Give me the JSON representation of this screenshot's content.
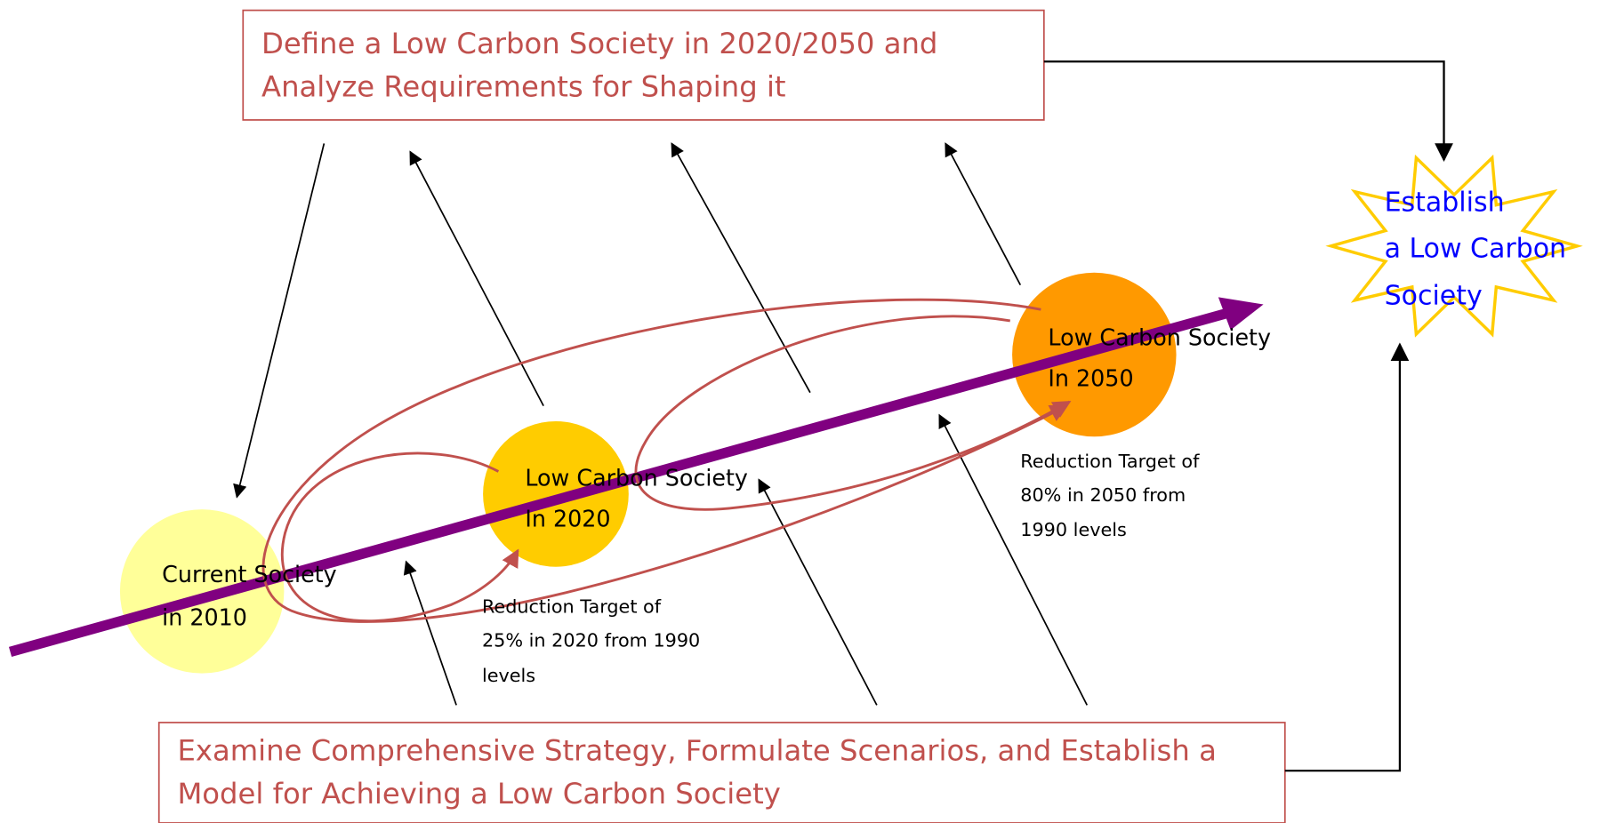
{
  "top_box": {
    "lines": [
      "Define a Low Carbon Society in 2020/2050 and",
      "Analyze Requirements for Shaping it"
    ]
  },
  "bottom_box": {
    "lines": [
      "Examine Comprehensive Strategy, Formulate Scenarios, and Establish a",
      "Model for Achieving a Low Carbon Society"
    ]
  },
  "nodes": [
    {
      "lines": [
        "Current Society",
        "in 2010"
      ]
    },
    {
      "lines": [
        "Low Carbon Society",
        "In 2020"
      ]
    },
    {
      "lines": [
        "Low Carbon Society",
        "In 2050"
      ]
    }
  ],
  "notes": [
    {
      "lines": [
        "Reduction Target of",
        "25% in 2020 from 1990",
        "levels"
      ]
    },
    {
      "lines": [
        "Reduction Target of",
        "80% in 2050 from",
        "1990 levels"
      ]
    }
  ],
  "goal": {
    "lines": [
      "Establish",
      "a Low Carbon",
      "Society"
    ]
  }
}
